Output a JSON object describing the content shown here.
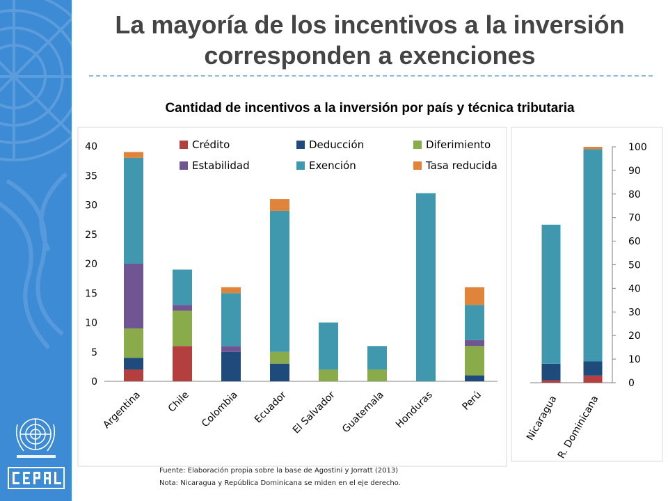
{
  "slide": {
    "title_line1": "La mayoría de los incentivos a la inversión",
    "title_line2": "corresponden a exenciones",
    "chart_heading": "Cantidad de incentivos a la inversión por país y técnica tributaria",
    "source_note": "Fuente: Elaboración propia sobre la base de Agostini y Jorratt (2013)",
    "axis_note": "Nota: Nicaragua y República Dominicana se miden en el eje derecho."
  },
  "colors": {
    "sidebar": "#3d8bd4",
    "Crédito": "#b3403f",
    "Deducción": "#1f4a7c",
    "Diferimiento": "#8aab4a",
    "Estabilidad": "#6f5592",
    "Exención": "#3f98ad",
    "Tasa reducida": "#e0843c"
  },
  "chart_data": [
    {
      "type": "bar",
      "stacked": true,
      "axis": "left",
      "categories": [
        "Argentina",
        "Chile",
        "Colombia",
        "Ecuador",
        "El Salvador",
        "Guatemala",
        "Honduras",
        "Perú"
      ],
      "series": [
        {
          "name": "Crédito",
          "values": [
            2,
            6,
            0,
            0,
            0,
            0,
            0,
            0
          ]
        },
        {
          "name": "Deducción",
          "values": [
            2,
            0,
            5,
            3,
            0,
            0,
            0,
            1
          ]
        },
        {
          "name": "Diferimiento",
          "values": [
            5,
            6,
            0,
            2,
            2,
            2,
            0,
            5
          ]
        },
        {
          "name": "Estabilidad",
          "values": [
            11,
            1,
            1,
            0,
            0,
            0,
            0,
            1
          ]
        },
        {
          "name": "Exención",
          "values": [
            18,
            6,
            9,
            24,
            8,
            4,
            32,
            6
          ]
        },
        {
          "name": "Tasa reducida",
          "values": [
            1,
            0,
            1,
            2,
            0,
            0,
            0,
            3
          ]
        }
      ],
      "ylim": [
        0,
        40
      ],
      "yticks": [
        0,
        5,
        10,
        15,
        20,
        25,
        30,
        35,
        40
      ],
      "legend": "top",
      "legend_order": [
        "Crédito",
        "Deducción",
        "Diferimiento",
        "Estabilidad",
        "Exención",
        "Tasa reducida"
      ]
    },
    {
      "type": "bar",
      "stacked": true,
      "axis": "right",
      "categories": [
        "Nicaragua",
        "R. Dominicana"
      ],
      "series": [
        {
          "name": "Crédito",
          "values": [
            1,
            3
          ]
        },
        {
          "name": "Deducción",
          "values": [
            7,
            6
          ]
        },
        {
          "name": "Diferimiento",
          "values": [
            0,
            0
          ]
        },
        {
          "name": "Estabilidad",
          "values": [
            0,
            0
          ]
        },
        {
          "name": "Exención",
          "values": [
            59,
            90
          ]
        },
        {
          "name": "Tasa reducida",
          "values": [
            0,
            1
          ]
        }
      ],
      "ylim": [
        0,
        100
      ],
      "yticks": [
        0,
        10,
        20,
        30,
        40,
        50,
        60,
        70,
        80,
        90,
        100
      ]
    }
  ]
}
